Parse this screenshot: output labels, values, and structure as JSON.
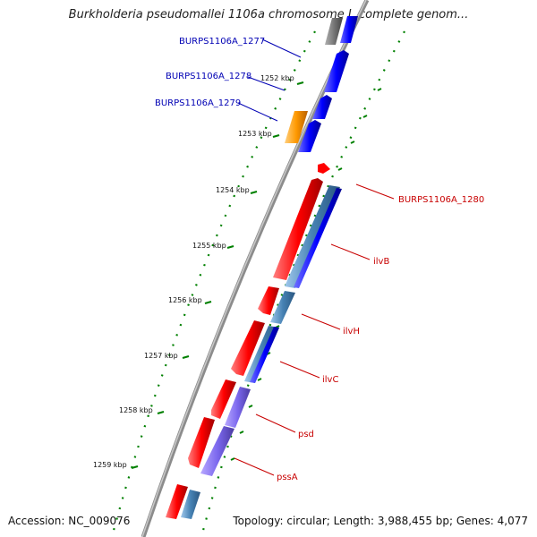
{
  "title": "Burkholderia pseudomallei 1106a chromosome I, complete genom...",
  "accession": "Accession: NC_009076",
  "topology": "Topology: circular; Length: 3,988,455 bp; Genes: 4,077",
  "kbp_ticks": [
    "1252 kbp",
    "1253 kbp",
    "1254 kbp",
    "1255 kbp",
    "1256 kbp",
    "1257 kbp",
    "1258 kbp",
    "1259 kbp"
  ],
  "gene_labels": [
    {
      "name": "BURPS1106A_1277",
      "color": "#0000b4"
    },
    {
      "name": "BURPS1106A_1278",
      "color": "#0000b4"
    },
    {
      "name": "BURPS1106A_1279",
      "color": "#0000b4"
    },
    {
      "name": "BURPS1106A_1280",
      "color": "#c80000"
    },
    {
      "name": "ilvB",
      "color": "#c80000"
    },
    {
      "name": "ilvH",
      "color": "#c80000"
    },
    {
      "name": "ilvC",
      "color": "#c80000"
    },
    {
      "name": "psd",
      "color": "#c80000"
    },
    {
      "name": "pssA",
      "color": "#c80000"
    }
  ],
  "colors": {
    "backbone": "#8c8c8c",
    "forward_cds": "#ff0000",
    "reverse_cds": "#0000ff",
    "orange_cds": "#ff9900",
    "gray_cds": "#777777",
    "steel_cds": "#4682b4",
    "violet_cds": "#7b68ee",
    "tick_green": "#008000"
  }
}
